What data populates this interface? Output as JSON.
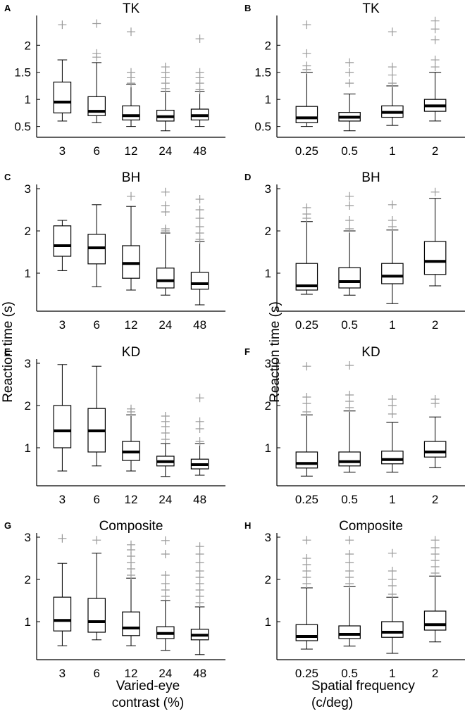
{
  "colors": {
    "box": "#000000",
    "median": "#000000",
    "outlier": "#999999",
    "background": "#ffffff"
  },
  "labels": {
    "ylabel": "Reaction time (s)",
    "xlabel_left_line1": "Varied-eye",
    "xlabel_left_line2": "contrast (%)",
    "xlabel_right_line1": "Spatial frequency",
    "xlabel_right_line2": "(c/deg)"
  },
  "chart_data": [
    {
      "type": "box",
      "panel": "A",
      "title": "TK",
      "xlabel": "Varied-eye contrast (%)",
      "ylabel": "Reaction time (s)",
      "categories": [
        "3",
        "6",
        "12",
        "24",
        "48"
      ],
      "yticks": [
        0.5,
        1,
        1.5,
        2
      ],
      "ylim": [
        0.3,
        2.55
      ],
      "boxes": [
        {
          "low": 0.6,
          "q1": 0.75,
          "median": 0.95,
          "q3": 1.32,
          "high": 1.73,
          "outliers": [
            2.38
          ]
        },
        {
          "low": 0.57,
          "q1": 0.7,
          "median": 0.78,
          "q3": 1.05,
          "high": 1.68,
          "outliers": [
            1.78,
            1.85,
            2.4
          ]
        },
        {
          "low": 0.5,
          "q1": 0.62,
          "median": 0.7,
          "q3": 0.88,
          "high": 1.28,
          "outliers": [
            1.3,
            1.4,
            1.5,
            2.25
          ]
        },
        {
          "low": 0.42,
          "q1": 0.6,
          "median": 0.68,
          "q3": 0.8,
          "high": 1.15,
          "outliers": [
            1.2,
            1.3,
            1.4,
            1.5,
            1.6
          ]
        },
        {
          "low": 0.5,
          "q1": 0.62,
          "median": 0.7,
          "q3": 0.82,
          "high": 1.15,
          "outliers": [
            1.18,
            1.3,
            1.4,
            1.5,
            2.12
          ]
        }
      ]
    },
    {
      "type": "box",
      "panel": "B",
      "title": "TK",
      "xlabel": "Spatial frequency (c/deg)",
      "ylabel": "Reaction time (s)",
      "categories": [
        "0.25",
        "0.5",
        "1",
        "2"
      ],
      "yticks": [
        0.5,
        1,
        1.5,
        2
      ],
      "ylim": [
        0.3,
        2.55
      ],
      "boxes": [
        {
          "low": 0.5,
          "q1": 0.57,
          "median": 0.66,
          "q3": 0.87,
          "high": 1.5,
          "outliers": [
            1.55,
            1.62,
            1.85,
            2.38
          ]
        },
        {
          "low": 0.42,
          "q1": 0.6,
          "median": 0.67,
          "q3": 0.76,
          "high": 1.1,
          "outliers": [
            1.3,
            1.5,
            1.68
          ]
        },
        {
          "low": 0.52,
          "q1": 0.67,
          "median": 0.76,
          "q3": 0.88,
          "high": 1.25,
          "outliers": [
            1.3,
            1.45,
            1.6,
            2.25
          ]
        },
        {
          "low": 0.6,
          "q1": 0.78,
          "median": 0.88,
          "q3": 1.0,
          "high": 1.5,
          "outliers": [
            1.6,
            1.73,
            2.1,
            2.3,
            2.45
          ]
        }
      ]
    },
    {
      "type": "box",
      "panel": "C",
      "title": "BH",
      "xlabel": "Varied-eye contrast (%)",
      "ylabel": "Reaction time (s)",
      "categories": [
        "3",
        "6",
        "12",
        "24",
        "48"
      ],
      "yticks": [
        1,
        2,
        3
      ],
      "ylim": [
        0.1,
        3.1
      ],
      "boxes": [
        {
          "low": 1.06,
          "q1": 1.4,
          "median": 1.65,
          "q3": 2.12,
          "high": 2.25,
          "outliers": []
        },
        {
          "low": 0.68,
          "q1": 1.22,
          "median": 1.6,
          "q3": 1.92,
          "high": 2.62,
          "outliers": []
        },
        {
          "low": 0.6,
          "q1": 0.88,
          "median": 1.23,
          "q3": 1.65,
          "high": 2.58,
          "outliers": [
            2.82
          ]
        },
        {
          "low": 0.48,
          "q1": 0.65,
          "median": 0.82,
          "q3": 1.12,
          "high": 1.95,
          "outliers": [
            2.0,
            2.05,
            2.45,
            2.6,
            2.92
          ]
        },
        {
          "low": 0.25,
          "q1": 0.62,
          "median": 0.75,
          "q3": 1.02,
          "high": 1.75,
          "outliers": [
            1.8,
            1.95,
            2.1,
            2.3,
            2.5,
            2.75
          ]
        }
      ]
    },
    {
      "type": "box",
      "panel": "D",
      "title": "BH",
      "xlabel": "Spatial frequency (c/deg)",
      "ylabel": "Reaction time (s)",
      "categories": [
        "0.25",
        "0.5",
        "1",
        "2"
      ],
      "yticks": [
        1,
        2,
        3
      ],
      "ylim": [
        0.1,
        3.1
      ],
      "boxes": [
        {
          "low": 0.5,
          "q1": 0.6,
          "median": 0.7,
          "q3": 1.23,
          "high": 2.22,
          "outliers": [
            2.3,
            2.4,
            2.55
          ]
        },
        {
          "low": 0.48,
          "q1": 0.65,
          "median": 0.8,
          "q3": 1.13,
          "high": 2.0,
          "outliers": [
            2.05,
            2.25,
            2.6,
            2.82
          ]
        },
        {
          "low": 0.28,
          "q1": 0.75,
          "median": 0.93,
          "q3": 1.23,
          "high": 2.02,
          "outliers": [
            2.1,
            2.25,
            2.62
          ]
        },
        {
          "low": 0.7,
          "q1": 0.97,
          "median": 1.28,
          "q3": 1.75,
          "high": 2.77,
          "outliers": [
            2.92
          ]
        }
      ]
    },
    {
      "type": "box",
      "panel": "E",
      "title": "KD",
      "xlabel": "Varied-eye contrast (%)",
      "ylabel": "Reaction time (s)",
      "categories": [
        "3",
        "6",
        "12",
        "24",
        "48"
      ],
      "yticks": [
        1,
        2,
        3
      ],
      "ylim": [
        0.1,
        3.1
      ],
      "boxes": [
        {
          "low": 0.45,
          "q1": 1.0,
          "median": 1.4,
          "q3": 2.0,
          "high": 2.97,
          "outliers": []
        },
        {
          "low": 0.57,
          "q1": 0.9,
          "median": 1.4,
          "q3": 1.93,
          "high": 2.93,
          "outliers": []
        },
        {
          "low": 0.45,
          "q1": 0.7,
          "median": 0.9,
          "q3": 1.15,
          "high": 1.78,
          "outliers": [
            1.85,
            1.92
          ]
        },
        {
          "low": 0.32,
          "q1": 0.57,
          "median": 0.67,
          "q3": 0.8,
          "high": 1.1,
          "outliers": [
            1.2,
            1.35,
            1.5,
            1.62,
            1.75
          ]
        },
        {
          "low": 0.35,
          "q1": 0.5,
          "median": 0.6,
          "q3": 0.73,
          "high": 1.1,
          "outliers": [
            1.15,
            1.45,
            1.62,
            2.18
          ]
        }
      ]
    },
    {
      "type": "box",
      "panel": "F",
      "title": "KD",
      "xlabel": "Spatial frequency (c/deg)",
      "ylabel": "Reaction time (s)",
      "categories": [
        "0.25",
        "0.5",
        "1",
        "2"
      ],
      "yticks": [
        1,
        2,
        3
      ],
      "ylim": [
        0.1,
        3.1
      ],
      "boxes": [
        {
          "low": 0.33,
          "q1": 0.52,
          "median": 0.63,
          "q3": 0.9,
          "high": 1.78,
          "outliers": [
            1.85,
            2.05,
            2.2,
            2.93
          ]
        },
        {
          "low": 0.42,
          "q1": 0.57,
          "median": 0.67,
          "q3": 0.9,
          "high": 1.87,
          "outliers": [
            1.95,
            2.1,
            2.25,
            2.95
          ]
        },
        {
          "low": 0.42,
          "q1": 0.62,
          "median": 0.72,
          "q3": 0.92,
          "high": 1.6,
          "outliers": [
            1.8,
            2.0,
            2.15
          ]
        },
        {
          "low": 0.53,
          "q1": 0.78,
          "median": 0.9,
          "q3": 1.15,
          "high": 1.73,
          "outliers": [
            2.05,
            2.15
          ]
        }
      ]
    },
    {
      "type": "box",
      "panel": "G",
      "title": "Composite",
      "xlabel": "Varied-eye contrast (%)",
      "ylabel": "Reaction time (s)",
      "categories": [
        "3",
        "6",
        "12",
        "24",
        "48"
      ],
      "yticks": [
        1,
        2,
        3
      ],
      "ylim": [
        0.1,
        3.1
      ],
      "boxes": [
        {
          "low": 0.43,
          "q1": 0.78,
          "median": 1.03,
          "q3": 1.58,
          "high": 2.38,
          "outliers": [
            2.97
          ]
        },
        {
          "low": 0.57,
          "q1": 0.75,
          "median": 1.0,
          "q3": 1.55,
          "high": 2.62,
          "outliers": [
            2.93
          ]
        },
        {
          "low": 0.43,
          "q1": 0.67,
          "median": 0.85,
          "q3": 1.23,
          "high": 2.03,
          "outliers": [
            2.1,
            2.25,
            2.4,
            2.55,
            2.7,
            2.82
          ]
        },
        {
          "low": 0.32,
          "q1": 0.6,
          "median": 0.72,
          "q3": 0.88,
          "high": 1.5,
          "outliers": [
            1.6,
            1.75,
            1.9,
            2.1,
            2.6,
            2.92
          ]
        },
        {
          "low": 0.22,
          "q1": 0.57,
          "median": 0.68,
          "q3": 0.82,
          "high": 1.35,
          "outliers": [
            1.45,
            1.6,
            1.75,
            1.9,
            2.05,
            2.2,
            2.4,
            2.6,
            2.78
          ]
        }
      ]
    },
    {
      "type": "box",
      "panel": "H",
      "title": "Composite",
      "xlabel": "Spatial frequency (c/deg)",
      "ylabel": "Reaction time (s)",
      "categories": [
        "0.25",
        "0.5",
        "1",
        "2"
      ],
      "yticks": [
        1,
        2,
        3
      ],
      "ylim": [
        0.1,
        3.1
      ],
      "boxes": [
        {
          "low": 0.35,
          "q1": 0.55,
          "median": 0.65,
          "q3": 0.93,
          "high": 1.8,
          "outliers": [
            1.9,
            2.05,
            2.2,
            2.35,
            2.5,
            2.93
          ]
        },
        {
          "low": 0.42,
          "q1": 0.6,
          "median": 0.7,
          "q3": 0.9,
          "high": 1.83,
          "outliers": [
            1.9,
            2.05,
            2.2,
            2.4,
            2.6,
            2.93
          ]
        },
        {
          "low": 0.25,
          "q1": 0.63,
          "median": 0.75,
          "q3": 1.0,
          "high": 1.58,
          "outliers": [
            1.65,
            1.85,
            2.0,
            2.2,
            2.62
          ]
        },
        {
          "low": 0.52,
          "q1": 0.8,
          "median": 0.93,
          "q3": 1.25,
          "high": 2.08,
          "outliers": [
            2.15,
            2.3,
            2.45,
            2.6,
            2.75,
            2.93
          ]
        }
      ]
    }
  ]
}
